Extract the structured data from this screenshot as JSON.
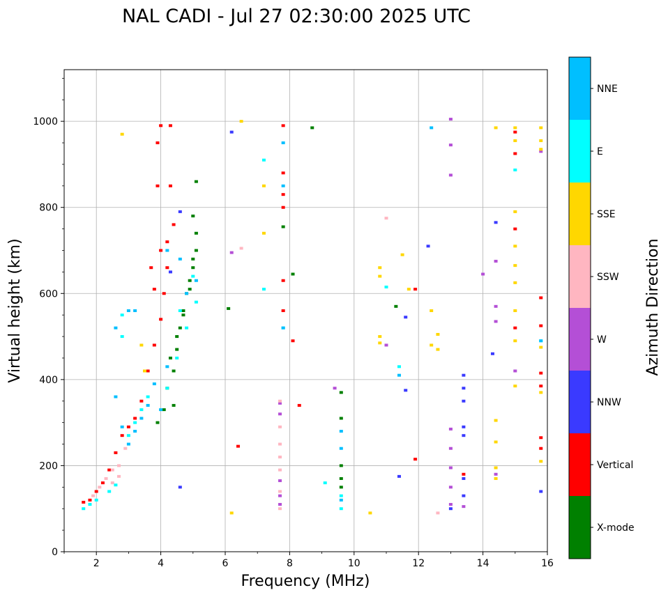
{
  "chart_data": {
    "type": "scatter",
    "title": "NAL CADI - Jul 27 02:30:00 2025 UTC",
    "xlabel": "Frequency (MHz)",
    "ylabel": "Virtual height (km)",
    "xlim": [
      1,
      16
    ],
    "ylim": [
      0,
      1120
    ],
    "grid": true,
    "x_ticks": [
      2,
      4,
      6,
      8,
      10,
      12,
      14,
      16
    ],
    "y_ticks": [
      0,
      200,
      400,
      600,
      800,
      1000
    ],
    "colorbar": {
      "label": "Azimuth Direction",
      "categories": [
        {
          "name": "X-mode",
          "color": "#008000"
        },
        {
          "name": "Vertical",
          "color": "#ff0000"
        },
        {
          "name": "NNW",
          "color": "#3a3aff"
        },
        {
          "name": "W",
          "color": "#b44fd6"
        },
        {
          "name": "SSW",
          "color": "#ffb6c1"
        },
        {
          "name": "SSE",
          "color": "#ffd700"
        },
        {
          "name": "E",
          "color": "#00ffff"
        },
        {
          "name": "NNE",
          "color": "#00bfff"
        }
      ]
    },
    "series": [
      {
        "name": "X-mode",
        "points": [
          [
            3.9,
            300
          ],
          [
            4.1,
            330
          ],
          [
            4.2,
            380
          ],
          [
            4.4,
            420
          ],
          [
            4.5,
            470
          ],
          [
            4.6,
            520
          ],
          [
            4.7,
            560
          ],
          [
            4.8,
            600
          ],
          [
            4.9,
            630
          ],
          [
            5.0,
            660
          ],
          [
            5.1,
            700
          ],
          [
            5.1,
            740
          ],
          [
            5.0,
            780
          ],
          [
            5.1,
            860
          ],
          [
            4.4,
            340
          ],
          [
            4.3,
            450
          ],
          [
            4.5,
            500
          ],
          [
            4.7,
            550
          ],
          [
            4.9,
            610
          ],
          [
            5.0,
            680
          ],
          [
            9.6,
            370
          ],
          [
            9.6,
            310
          ],
          [
            9.6,
            200
          ],
          [
            9.6,
            170
          ],
          [
            9.6,
            150
          ],
          [
            8.1,
            645
          ],
          [
            8.7,
            985
          ],
          [
            6.1,
            565
          ],
          [
            7.8,
            755
          ],
          [
            11.3,
            570
          ]
        ]
      },
      {
        "name": "Vertical",
        "points": [
          [
            1.6,
            115
          ],
          [
            1.8,
            120
          ],
          [
            2.0,
            140
          ],
          [
            2.2,
            160
          ],
          [
            2.4,
            190
          ],
          [
            2.6,
            230
          ],
          [
            2.8,
            270
          ],
          [
            3.0,
            290
          ],
          [
            3.2,
            310
          ],
          [
            3.4,
            350
          ],
          [
            3.6,
            420
          ],
          [
            3.8,
            480
          ],
          [
            4.0,
            540
          ],
          [
            4.1,
            600
          ],
          [
            4.2,
            660
          ],
          [
            4.2,
            720
          ],
          [
            4.4,
            760
          ],
          [
            3.8,
            610
          ],
          [
            4.0,
            700
          ],
          [
            3.7,
            660
          ],
          [
            4.0,
            990
          ],
          [
            4.3,
            990
          ],
          [
            3.9,
            950
          ],
          [
            3.9,
            850
          ],
          [
            4.3,
            850
          ],
          [
            7.8,
            990
          ],
          [
            7.8,
            880
          ],
          [
            7.8,
            830
          ],
          [
            7.8,
            800
          ],
          [
            7.8,
            630
          ],
          [
            7.8,
            560
          ],
          [
            8.1,
            490
          ],
          [
            8.3,
            340
          ],
          [
            6.4,
            245
          ],
          [
            11.9,
            610
          ],
          [
            11.9,
            215
          ],
          [
            15.0,
            975
          ],
          [
            15.0,
            925
          ],
          [
            15.0,
            750
          ],
          [
            15.0,
            520
          ],
          [
            15.8,
            590
          ],
          [
            15.8,
            525
          ],
          [
            15.8,
            415
          ],
          [
            15.8,
            385
          ],
          [
            15.8,
            265
          ],
          [
            15.8,
            240
          ],
          [
            13.4,
            180
          ]
        ]
      },
      {
        "name": "NNW",
        "points": [
          [
            4.3,
            650
          ],
          [
            4.6,
            790
          ],
          [
            13.4,
            410
          ],
          [
            13.4,
            380
          ],
          [
            13.4,
            350
          ],
          [
            13.4,
            290
          ],
          [
            13.4,
            270
          ],
          [
            13.4,
            170
          ],
          [
            13.4,
            130
          ],
          [
            14.4,
            765
          ],
          [
            14.3,
            460
          ],
          [
            15.8,
            140
          ],
          [
            12.3,
            710
          ],
          [
            11.6,
            545
          ],
          [
            11.6,
            375
          ],
          [
            11.4,
            175
          ],
          [
            4.6,
            150
          ],
          [
            13.0,
            100
          ],
          [
            6.2,
            975
          ]
        ]
      },
      {
        "name": "W",
        "points": [
          [
            13.0,
            1005
          ],
          [
            13.0,
            945
          ],
          [
            13.0,
            875
          ],
          [
            13.0,
            285
          ],
          [
            13.0,
            240
          ],
          [
            13.0,
            195
          ],
          [
            13.0,
            150
          ],
          [
            13.0,
            110
          ],
          [
            7.7,
            345
          ],
          [
            7.7,
            320
          ],
          [
            7.7,
            165
          ],
          [
            7.7,
            130
          ],
          [
            7.7,
            110
          ],
          [
            14.4,
            675
          ],
          [
            14.4,
            570
          ],
          [
            14.4,
            535
          ],
          [
            15.0,
            420
          ],
          [
            15.8,
            930
          ],
          [
            14.0,
            645
          ],
          [
            14.4,
            180
          ],
          [
            6.2,
            695
          ],
          [
            9.4,
            380
          ],
          [
            11.0,
            480
          ],
          [
            13.4,
            105
          ]
        ]
      },
      {
        "name": "SSW",
        "points": [
          [
            1.9,
            130
          ],
          [
            2.1,
            150
          ],
          [
            2.3,
            170
          ],
          [
            2.5,
            190
          ],
          [
            2.7,
            200
          ],
          [
            2.9,
            240
          ],
          [
            7.7,
            350
          ],
          [
            7.7,
            290
          ],
          [
            7.7,
            250
          ],
          [
            7.7,
            220
          ],
          [
            7.7,
            190
          ],
          [
            7.7,
            140
          ],
          [
            7.7,
            100
          ],
          [
            12.6,
            90
          ],
          [
            11.0,
            775
          ],
          [
            6.5,
            705
          ],
          [
            2.5,
            160
          ],
          [
            2.7,
            175
          ]
        ]
      },
      {
        "name": "SSE",
        "points": [
          [
            10.8,
            660
          ],
          [
            10.8,
            640
          ],
          [
            10.8,
            500
          ],
          [
            10.8,
            485
          ],
          [
            15.0,
            985
          ],
          [
            15.0,
            955
          ],
          [
            15.0,
            790
          ],
          [
            15.0,
            710
          ],
          [
            15.0,
            665
          ],
          [
            15.0,
            625
          ],
          [
            15.0,
            560
          ],
          [
            15.0,
            490
          ],
          [
            15.0,
            385
          ],
          [
            15.8,
            985
          ],
          [
            15.8,
            955
          ],
          [
            15.8,
            935
          ],
          [
            15.8,
            475
          ],
          [
            15.8,
            370
          ],
          [
            15.8,
            210
          ],
          [
            14.4,
            985
          ],
          [
            14.4,
            305
          ],
          [
            14.4,
            255
          ],
          [
            14.4,
            195
          ],
          [
            14.4,
            170
          ],
          [
            12.4,
            560
          ],
          [
            12.4,
            480
          ],
          [
            12.6,
            505
          ],
          [
            12.6,
            470
          ],
          [
            2.8,
            970
          ],
          [
            6.5,
            1000
          ],
          [
            6.2,
            90
          ],
          [
            10.5,
            90
          ],
          [
            7.2,
            850
          ],
          [
            7.2,
            740
          ],
          [
            3.5,
            420
          ],
          [
            3.4,
            480
          ],
          [
            11.5,
            690
          ],
          [
            11.7,
            610
          ]
        ]
      },
      {
        "name": "E",
        "points": [
          [
            1.6,
            100
          ],
          [
            1.8,
            110
          ],
          [
            2.0,
            120
          ],
          [
            2.4,
            140
          ],
          [
            2.6,
            155
          ],
          [
            3.0,
            270
          ],
          [
            3.2,
            300
          ],
          [
            3.4,
            330
          ],
          [
            3.6,
            360
          ],
          [
            4.2,
            380
          ],
          [
            4.5,
            450
          ],
          [
            4.8,
            520
          ],
          [
            5.1,
            580
          ],
          [
            5.0,
            640
          ],
          [
            4.6,
            560
          ],
          [
            2.8,
            500
          ],
          [
            2.8,
            550
          ],
          [
            9.6,
            130
          ],
          [
            9.6,
            100
          ],
          [
            9.1,
            160
          ],
          [
            11.0,
            615
          ],
          [
            15.8,
            490
          ],
          [
            7.2,
            610
          ],
          [
            7.2,
            910
          ],
          [
            15.0,
            887
          ],
          [
            7.8,
            520
          ],
          [
            11.4,
            430
          ]
        ]
      },
      {
        "name": "NNE",
        "points": [
          [
            2.6,
            360
          ],
          [
            2.8,
            290
          ],
          [
            3.0,
            250
          ],
          [
            3.2,
            280
          ],
          [
            3.4,
            310
          ],
          [
            3.6,
            340
          ],
          [
            3.8,
            390
          ],
          [
            4.2,
            430
          ],
          [
            4.0,
            330
          ],
          [
            4.8,
            600
          ],
          [
            5.1,
            630
          ],
          [
            4.6,
            680
          ],
          [
            4.2,
            700
          ],
          [
            7.8,
            950
          ],
          [
            7.8,
            850
          ],
          [
            7.8,
            520
          ],
          [
            12.4,
            985
          ],
          [
            9.6,
            280
          ],
          [
            9.6,
            240
          ],
          [
            9.6,
            120
          ],
          [
            11.4,
            410
          ],
          [
            15.8,
            490
          ],
          [
            3.2,
            560
          ],
          [
            3.0,
            560
          ],
          [
            2.6,
            520
          ]
        ]
      }
    ]
  }
}
